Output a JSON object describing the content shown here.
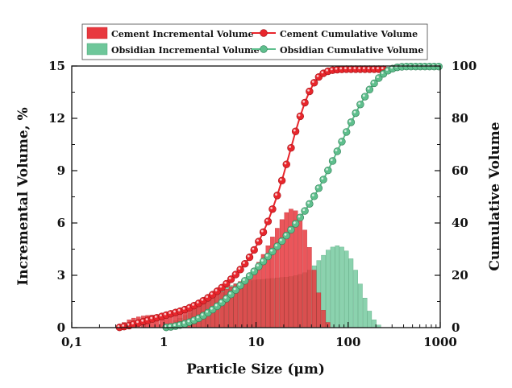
{
  "chart_data": {
    "type": "bar+line",
    "xlabel": "Particle Size (μm)",
    "ylabel_left": "Incremental Volume, %",
    "ylabel_right": "Cumulative Volume",
    "x_scale": "log",
    "xlim": [
      0.1,
      1000
    ],
    "x_ticks": [
      0.1,
      1,
      10,
      100,
      1000
    ],
    "x_tick_labels": [
      "0,1",
      "1",
      "10",
      "100",
      "1000"
    ],
    "ylim_left": [
      0,
      15
    ],
    "y_left_ticks": [
      0,
      3,
      6,
      9,
      12,
      15
    ],
    "y_left_tick_labels": [
      "0",
      "3",
      "6",
      "9",
      "12",
      "15"
    ],
    "ylim_right": [
      0,
      100
    ],
    "y_right_ticks": [
      0,
      20,
      40,
      60,
      80,
      100
    ],
    "y_right_tick_labels": [
      "0",
      "20",
      "40",
      "60",
      "80",
      "100"
    ],
    "colors": {
      "cement": "#e8262c",
      "obsidian": "#5fbf8d",
      "cement_bar": "#e8383e",
      "obsidian_bar": "#6ec79a"
    },
    "legend": [
      {
        "label": "Cement Incremental Volume",
        "kind": "bar",
        "series": "cement"
      },
      {
        "label": "Cement Cumulative Volume",
        "kind": "line",
        "series": "cement"
      },
      {
        "label": "Obsidian Incremental Volume",
        "kind": "bar",
        "series": "obsidian"
      },
      {
        "label": "Obsidian Cumulative Volume",
        "kind": "line",
        "series": "obsidian"
      }
    ],
    "series": [
      {
        "name": "Cement Incremental Volume",
        "kind": "bar",
        "axis": "left",
        "color_key": "cement_bar",
        "x": [
          0.33,
          0.37,
          0.42,
          0.47,
          0.53,
          0.6,
          0.67,
          0.75,
          0.84,
          0.95,
          1.06,
          1.19,
          1.34,
          1.5,
          1.69,
          1.9,
          2.13,
          2.39,
          2.68,
          3.01,
          3.38,
          3.79,
          4.26,
          4.78,
          5.36,
          6.02,
          6.76,
          7.58,
          8.51,
          9.55,
          10.7,
          12.0,
          13.5,
          15.1,
          17.0,
          19.1,
          21.4,
          24.0,
          26.9,
          30.2,
          33.9,
          38.1,
          42.8,
          48.0,
          53.9,
          60.5
        ],
        "values": [
          0.15,
          0.3,
          0.45,
          0.55,
          0.62,
          0.67,
          0.7,
          0.72,
          0.73,
          0.74,
          0.75,
          0.78,
          0.82,
          0.9,
          1.0,
          1.1,
          1.25,
          1.4,
          1.55,
          1.7,
          1.85,
          1.95,
          2.05,
          2.2,
          2.35,
          2.5,
          2.65,
          2.85,
          3.1,
          3.4,
          3.75,
          4.2,
          4.7,
          5.2,
          5.7,
          6.2,
          6.6,
          6.8,
          6.7,
          6.3,
          5.6,
          4.6,
          3.3,
          2.0,
          1.0,
          0.3
        ]
      },
      {
        "name": "Obsidian Incremental Volume",
        "kind": "bar",
        "axis": "left",
        "color_key": "obsidian_bar",
        "x": [
          1.06,
          1.19,
          1.34,
          1.5,
          1.69,
          1.9,
          2.13,
          2.39,
          2.68,
          3.01,
          3.38,
          3.79,
          4.26,
          4.78,
          5.36,
          6.02,
          6.76,
          7.58,
          8.51,
          9.55,
          10.7,
          12.0,
          13.5,
          15.1,
          17.0,
          19.1,
          21.4,
          24.0,
          26.9,
          30.2,
          33.9,
          38.1,
          42.8,
          48.0,
          53.9,
          60.5,
          67.9,
          76.2,
          85.5,
          96.0,
          107.7,
          120.9,
          135.7,
          152.3,
          170.9,
          191.8,
          215.3
        ],
        "values": [
          0.1,
          0.25,
          0.4,
          0.55,
          0.7,
          0.85,
          1.05,
          1.25,
          1.45,
          1.65,
          1.85,
          2.0,
          2.15,
          2.3,
          2.42,
          2.52,
          2.6,
          2.66,
          2.7,
          2.73,
          2.75,
          2.77,
          2.8,
          2.82,
          2.85,
          2.88,
          2.9,
          2.93,
          2.98,
          3.05,
          3.15,
          3.3,
          3.55,
          3.85,
          4.15,
          4.45,
          4.62,
          4.7,
          4.62,
          4.4,
          3.95,
          3.3,
          2.5,
          1.7,
          0.95,
          0.45,
          0.15
        ]
      },
      {
        "name": "Cement Cumulative Volume",
        "kind": "line",
        "axis": "right",
        "color_key": "cement",
        "x": [
          0.33,
          0.37,
          0.42,
          0.47,
          0.53,
          0.6,
          0.67,
          0.75,
          0.84,
          0.95,
          1.06,
          1.19,
          1.34,
          1.5,
          1.69,
          1.9,
          2.13,
          2.39,
          2.68,
          3.01,
          3.38,
          3.79,
          4.26,
          4.78,
          5.36,
          6.02,
          6.76,
          7.58,
          8.51,
          9.55,
          10.7,
          12.0,
          13.5,
          15.1,
          17.0,
          19.1,
          21.4,
          24.0,
          26.9,
          30.2,
          33.9,
          38.1,
          42.8,
          48.0,
          53.9,
          60.5,
          67.9,
          76.2,
          85.5,
          96.0,
          107.7,
          120.9,
          135.7,
          152.3,
          170.9,
          191.8,
          215.3,
          241.6
        ],
        "values": [
          0.1,
          0.4,
          0.8,
          1.3,
          1.8,
          2.3,
          2.8,
          3.3,
          3.8,
          4.3,
          4.8,
          5.3,
          5.8,
          6.3,
          6.9,
          7.6,
          8.4,
          9.3,
          10.3,
          11.4,
          12.6,
          13.9,
          15.3,
          16.8,
          18.5,
          20.3,
          22.2,
          24.4,
          26.9,
          29.7,
          32.9,
          36.5,
          40.6,
          45.3,
          50.5,
          56.2,
          62.4,
          68.7,
          75.0,
          80.8,
          86.0,
          90.3,
          93.6,
          95.8,
          97.2,
          98.0,
          98.4,
          98.6,
          98.7,
          98.8,
          98.8,
          98.8,
          98.8,
          98.8,
          98.8,
          98.8,
          98.8,
          98.8
        ]
      },
      {
        "name": "Obsidian Cumulative Volume",
        "kind": "line",
        "axis": "right",
        "color_key": "obsidian",
        "x": [
          1.06,
          1.19,
          1.34,
          1.5,
          1.69,
          1.9,
          2.13,
          2.39,
          2.68,
          3.01,
          3.38,
          3.79,
          4.26,
          4.78,
          5.36,
          6.02,
          6.76,
          7.58,
          8.51,
          9.55,
          10.7,
          12.0,
          13.5,
          15.1,
          17.0,
          19.1,
          21.4,
          24.0,
          26.9,
          30.2,
          33.9,
          38.1,
          42.8,
          48.0,
          53.9,
          60.5,
          67.9,
          76.2,
          85.5,
          96.0,
          107.7,
          120.9,
          135.7,
          152.3,
          170.9,
          191.8,
          215.3,
          241.6,
          271.1,
          304.3,
          341.5,
          383.2,
          430.1,
          482.7,
          541.7,
          607.9,
          682.2,
          765.6,
          859.2,
          964.2
        ],
        "values": [
          0.1,
          0.3,
          0.6,
          1.0,
          1.5,
          2.1,
          2.8,
          3.6,
          4.6,
          5.7,
          6.9,
          8.2,
          9.6,
          11.1,
          12.7,
          14.4,
          16.1,
          17.9,
          19.7,
          21.5,
          23.4,
          25.3,
          27.2,
          29.1,
          31.1,
          33.1,
          35.2,
          37.4,
          39.7,
          42.1,
          44.6,
          47.3,
          50.2,
          53.3,
          56.6,
          60.1,
          63.7,
          67.4,
          71.1,
          74.8,
          78.5,
          82.0,
          85.3,
          88.3,
          91.0,
          93.4,
          95.4,
          97.0,
          98.2,
          99.0,
          99.5,
          99.7,
          99.8,
          99.8,
          99.8,
          99.8,
          99.8,
          99.8,
          99.8,
          99.8
        ]
      }
    ]
  }
}
